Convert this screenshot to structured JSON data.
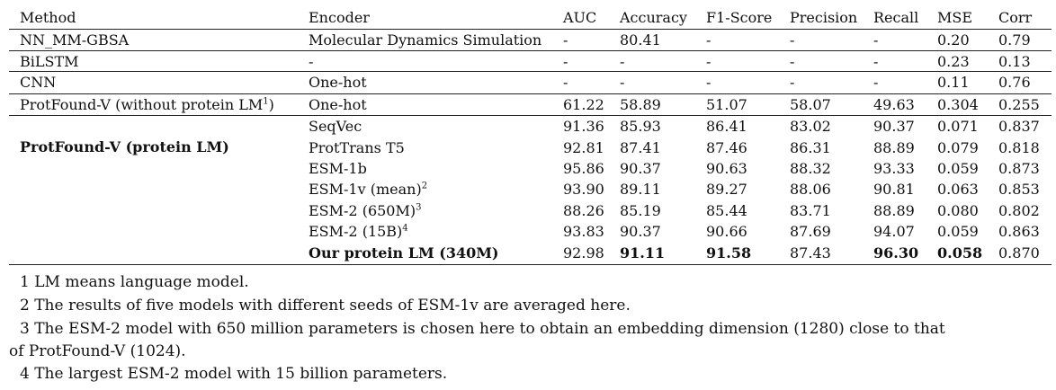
{
  "table": {
    "headers": [
      "Method",
      "Encoder",
      "AUC",
      "Accuracy",
      "F1-Score",
      "Precision",
      "Recall",
      "MSE",
      "Corr"
    ],
    "baseline_rows": [
      {
        "method": "NN_MM-GBSA",
        "encoder": "Molecular Dynamics Simulation",
        "auc": "-",
        "accuracy": "80.41",
        "f1": "-",
        "precision": "-",
        "recall": "-",
        "mse": "0.20",
        "corr": "0.79"
      },
      {
        "method": "BiLSTM",
        "encoder": "-",
        "auc": "-",
        "accuracy": "-",
        "f1": "-",
        "precision": "-",
        "recall": "-",
        "mse": "0.23",
        "corr": "0.13"
      },
      {
        "method": "CNN",
        "encoder": "One-hot",
        "auc": "-",
        "accuracy": "-",
        "f1": "-",
        "precision": "-",
        "recall": "-",
        "mse": "0.11",
        "corr": "0.76"
      },
      {
        "method": "ProtFound-V (without protein LM",
        "method_sup": "1",
        "method_suffix": ")",
        "encoder": "One-hot",
        "auc": "61.22",
        "accuracy": "58.89",
        "f1": "51.07",
        "precision": "58.07",
        "recall": "49.63",
        "mse": "0.304",
        "corr": "0.255"
      }
    ],
    "group": {
      "method": "ProtFound-V (protein LM)",
      "rows": [
        {
          "encoder": "SeqVec",
          "encoder_sup": "",
          "auc": "91.36",
          "accuracy": "85.93",
          "f1": "86.41",
          "precision": "83.02",
          "recall": "90.37",
          "mse": "0.071",
          "corr": "0.837"
        },
        {
          "encoder": "ProtTrans T5",
          "encoder_sup": "",
          "auc": "92.81",
          "accuracy": "87.41",
          "f1": "87.46",
          "precision": "86.31",
          "recall": "88.89",
          "mse": "0.079",
          "corr": "0.818"
        },
        {
          "encoder": "ESM-1b",
          "encoder_sup": "",
          "auc": "95.86",
          "accuracy": "90.37",
          "f1": "90.63",
          "precision": "88.32",
          "recall": "93.33",
          "mse": "0.059",
          "corr": "0.873"
        },
        {
          "encoder": "ESM-1v (mean)",
          "encoder_sup": "2",
          "auc": "93.90",
          "accuracy": "89.11",
          "f1": "89.27",
          "precision": "88.06",
          "recall": "90.81",
          "mse": "0.063",
          "corr": "0.853"
        },
        {
          "encoder": "ESM-2 (650M)",
          "encoder_sup": "3",
          "auc": "88.26",
          "accuracy": "85.19",
          "f1": "85.44",
          "precision": "83.71",
          "recall": "88.89",
          "mse": "0.080",
          "corr": "0.802"
        },
        {
          "encoder": "ESM-2 (15B)",
          "encoder_sup": "4",
          "auc": "93.83",
          "accuracy": "90.37",
          "f1": "90.66",
          "precision": "87.69",
          "recall": "94.07",
          "mse": "0.059",
          "corr": "0.863"
        },
        {
          "encoder": "Our protein LM (340M)",
          "encoder_sup": "",
          "auc": "92.98",
          "accuracy": "91.11",
          "f1": "91.58",
          "precision": "87.43",
          "recall": "96.30",
          "mse": "0.058",
          "corr": "0.870"
        }
      ]
    }
  },
  "footnotes": [
    "1 LM means language model.",
    "2 The results of five models with different seeds of ESM-1v are averaged here.",
    "3 The ESM-2 model with 650 million parameters is chosen here to obtain an embedding dimension (1280) close to that",
    "of ProtFound-V (1024).",
    "4 The largest ESM-2 model with 15 billion parameters."
  ]
}
